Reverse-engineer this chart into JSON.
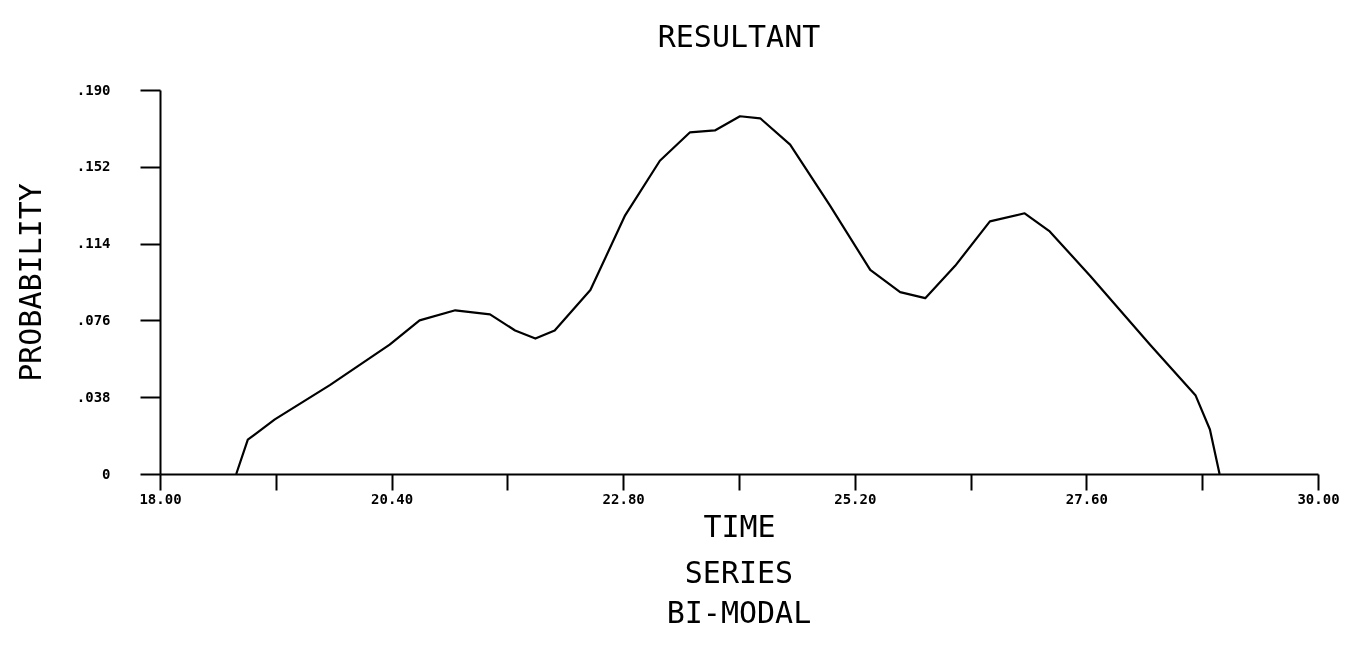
{
  "chart_data": {
    "type": "line",
    "title": "RESULTANT",
    "xlabel": "TIME",
    "ylabel": "PROBABILITY",
    "annotations": [
      "SERIES",
      "BI-MODAL"
    ],
    "x": [
      18.79,
      18.91,
      19.19,
      19.76,
      20.38,
      20.69,
      21.06,
      21.42,
      21.68,
      21.89,
      22.09,
      22.46,
      22.82,
      23.18,
      23.49,
      23.75,
      24.01,
      24.22,
      24.53,
      24.94,
      25.36,
      25.67,
      25.93,
      26.24,
      26.6,
      26.96,
      27.22,
      27.64,
      28.26,
      28.73,
      28.88,
      28.98
    ],
    "series": [
      {
        "color": "#000000",
        "values": [
          0,
          0.017,
          0.027,
          0.044,
          0.064,
          0.076,
          0.081,
          0.079,
          0.071,
          0.067,
          0.071,
          0.091,
          0.128,
          0.155,
          0.169,
          0.17,
          0.177,
          0.176,
          0.163,
          0.133,
          0.101,
          0.09,
          0.087,
          0.103,
          0.125,
          0.129,
          0.12,
          0.098,
          0.064,
          0.039,
          0.022,
          0
        ]
      }
    ],
    "xlim": [
      18,
      30
    ],
    "xticks": [
      {
        "value": 18,
        "label": "18.00"
      },
      {
        "value": 19.2,
        "label": null
      },
      {
        "value": 20.4,
        "label": "20.40"
      },
      {
        "value": 21.6,
        "label": null
      },
      {
        "value": 22.8,
        "label": "22.80"
      },
      {
        "value": 24,
        "label": null
      },
      {
        "value": 25.2,
        "label": "25.20"
      },
      {
        "value": 26.4,
        "label": null
      },
      {
        "value": 27.6,
        "label": "27.60"
      },
      {
        "value": 28.8,
        "label": null
      },
      {
        "value": 30,
        "label": "30.00"
      }
    ],
    "ylim": [
      0,
      0.19
    ],
    "yticks": [
      0,
      {
        "value": 0.038,
        "label": ".038"
      },
      {
        "value": 0.076,
        "label": ".076"
      },
      {
        "value": 0.114,
        "label": ".114"
      },
      {
        "value": 0.152,
        "label": ".152"
      },
      {
        "value": 0.19,
        "label": ".190"
      }
    ],
    "grid": false,
    "marker": "none",
    "line_style": "solid"
  }
}
